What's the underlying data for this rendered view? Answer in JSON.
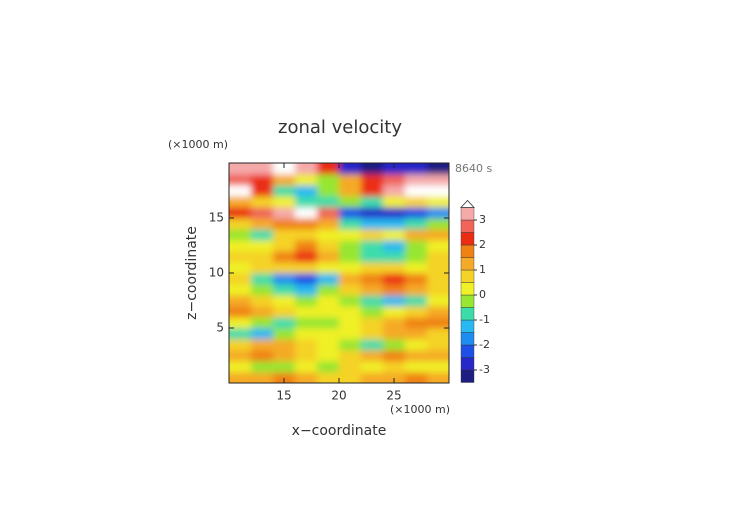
{
  "chart_data": {
    "type": "contour",
    "title": "zonal velocity",
    "x_label": "x−coordinate",
    "y_label": "z−coordinate",
    "x_unit": "(×1000 m)",
    "y_unit": "(×1000 m)",
    "time_label": "8640 s",
    "xlim": [
      10,
      30
    ],
    "ylim": [
      0,
      20
    ],
    "xticks": [
      15,
      20,
      25
    ],
    "yticks": [
      5,
      10,
      15
    ],
    "x": [
      11,
      13,
      15,
      17,
      19,
      21,
      23,
      25,
      27,
      29
    ],
    "y": [
      0.5,
      1.5,
      2.5,
      3.5,
      4.5,
      5.5,
      6.5,
      7.5,
      8.5,
      9.5,
      10.5,
      11.5,
      12.5,
      13.5,
      14.5,
      15.5,
      16.5,
      17.5,
      18.5,
      19.5
    ],
    "z": [
      [
        1,
        1,
        1.5,
        1,
        0.5,
        0.5,
        1,
        1,
        1.5,
        1
      ],
      [
        0,
        -0.5,
        -0.5,
        0,
        -0.5,
        0.5,
        0,
        0.5,
        0,
        0
      ],
      [
        1,
        1.5,
        1,
        0.5,
        0,
        0.5,
        1,
        1.5,
        1,
        1
      ],
      [
        0.5,
        1,
        1,
        0.5,
        0,
        -0.5,
        -1,
        -0.5,
        0,
        0.5
      ],
      [
        -1,
        -1.5,
        -0.5,
        0,
        0,
        0,
        0.5,
        1,
        1,
        0.5
      ],
      [
        0,
        -0.5,
        -1,
        -0.5,
        -0.5,
        0,
        0.5,
        1,
        1.5,
        1.5
      ],
      [
        1.5,
        1,
        0.5,
        0,
        0,
        0,
        -0.5,
        0,
        0.5,
        1
      ],
      [
        1,
        0.5,
        0,
        -0.5,
        0,
        -0.5,
        -1,
        -1.5,
        -1,
        0
      ],
      [
        0,
        -0.5,
        -1,
        -1.5,
        -0.5,
        0.5,
        1,
        1.5,
        1,
        0.5
      ],
      [
        0.5,
        -1,
        -2,
        -2.5,
        -1.5,
        1,
        1.5,
        2,
        1.5,
        0.5
      ],
      [
        0,
        0.5,
        0.5,
        0.5,
        0,
        0,
        0.5,
        0.5,
        0,
        0.5
      ],
      [
        0.5,
        0.5,
        1.5,
        2,
        1,
        -0.5,
        -1,
        -1,
        -0.5,
        0.5
      ],
      [
        0,
        0,
        0.5,
        1.5,
        0.5,
        -0.5,
        -1,
        -1.5,
        -0.5,
        0
      ],
      [
        -0.5,
        -1,
        0.5,
        0.5,
        0,
        0,
        0.5,
        0,
        1,
        1
      ],
      [
        0.5,
        1,
        1.5,
        1.5,
        1,
        -1,
        -1.5,
        -1.5,
        -1,
        -0.5
      ],
      [
        2,
        2.5,
        3,
        3.5,
        2.5,
        -2.5,
        -3,
        -3,
        -2.5,
        -2
      ],
      [
        1,
        0.5,
        0,
        -1,
        -1,
        -0.5,
        -1,
        0,
        0.5,
        0
      ],
      [
        4,
        2,
        -1,
        -1.5,
        -0.5,
        1,
        2,
        3,
        4,
        4
      ],
      [
        2.5,
        2,
        1,
        0,
        -0.5,
        1,
        2,
        2.5,
        3,
        3
      ],
      [
        3,
        3,
        3.5,
        3,
        2,
        -3,
        -3.5,
        -3,
        -3,
        -3.5
      ]
    ],
    "colorbar": {
      "levels": [
        -3.5,
        -3,
        -2.5,
        -2,
        -1.5,
        -1,
        -0.5,
        0,
        0.5,
        1,
        1.5,
        2,
        2.5,
        3,
        3.5
      ],
      "colors": [
        "#1e1e82",
        "#2828c8",
        "#1e50e6",
        "#1e8cf0",
        "#28b9f0",
        "#3cdcaa",
        "#96e632",
        "#f0f028",
        "#f5d228",
        "#f5aa28",
        "#f08214",
        "#eb2d14",
        "#f0645a",
        "#f5aaaa"
      ],
      "extend_color": "#ffffff",
      "ticks": [
        -3,
        -2,
        -1,
        0,
        1,
        2,
        3
      ]
    }
  }
}
